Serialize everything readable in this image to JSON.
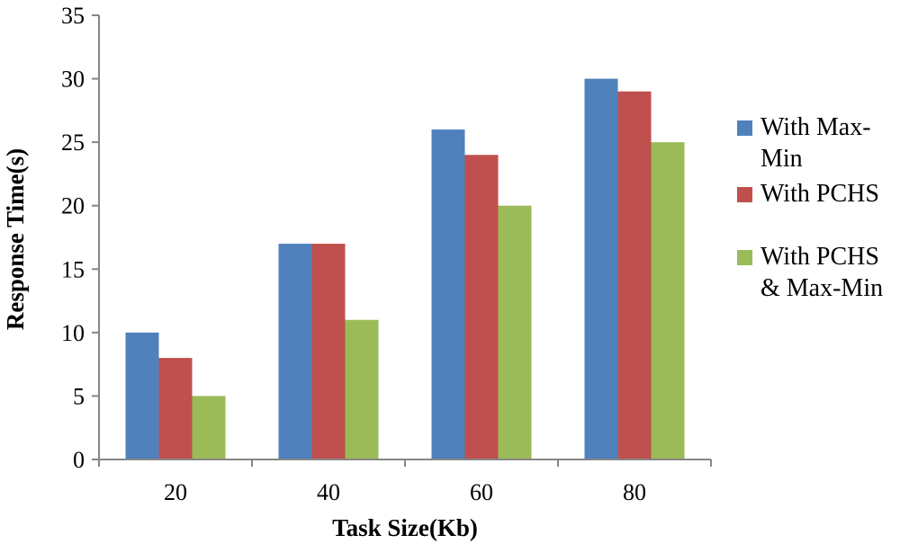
{
  "chart_data": {
    "type": "bar",
    "title": "",
    "categories": [
      "20",
      "40",
      "60",
      "80"
    ],
    "series": [
      {
        "name": "With Max-Min",
        "legend_lines": [
          "With Max-",
          "Min"
        ],
        "color": "#4F81BD",
        "values": [
          10,
          17,
          26,
          30
        ]
      },
      {
        "name": "With PCHS",
        "legend_lines": [
          "With PCHS"
        ],
        "color": "#C0504D",
        "values": [
          8,
          17,
          24,
          29
        ]
      },
      {
        "name": "With PCHS & Max-Min",
        "legend_lines": [
          "With PCHS",
          "& Max-Min"
        ],
        "color": "#9BBB59",
        "values": [
          5,
          11,
          20,
          25
        ]
      }
    ],
    "xlabel": "Task Size(Kb)",
    "ylabel": "Response Time(s)",
    "ylim": [
      0,
      35
    ],
    "yticks": [
      "0",
      "5",
      "10",
      "15",
      "20",
      "25",
      "30",
      "35"
    ],
    "grid": false,
    "legend_position": "right"
  }
}
